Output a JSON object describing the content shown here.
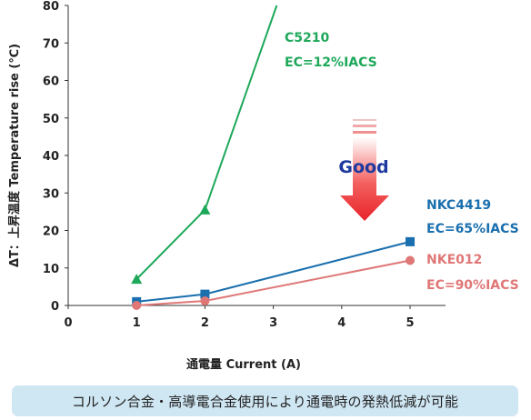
{
  "chart_data": {
    "type": "line",
    "xlabel": "通電量 Current (A)",
    "ylabel": "ΔT：上昇温度 Temperature rise (℃)",
    "xlim": [
      0,
      5.5
    ],
    "ylim": [
      0,
      80
    ],
    "xticks": [
      0,
      1,
      2,
      3,
      4,
      5
    ],
    "yticks": [
      0,
      10,
      20,
      30,
      40,
      50,
      60,
      70,
      80
    ],
    "grid": false,
    "series": [
      {
        "name": "C5210",
        "subname": "EC=12%IACS",
        "color": "#1ea85a",
        "marker": "triangle",
        "x": [
          1,
          2,
          3.05
        ],
        "y": [
          7,
          25.5,
          80
        ]
      },
      {
        "name": "NKC4419",
        "subname": "EC=65%IACS",
        "color": "#1a6fae",
        "marker": "square",
        "x": [
          1,
          2,
          5
        ],
        "y": [
          1,
          3,
          17
        ]
      },
      {
        "name": "NKE012",
        "subname": "EC=90%IACS",
        "color": "#e07777",
        "marker": "circle",
        "x": [
          1,
          2,
          5
        ],
        "y": [
          0,
          1.2,
          12
        ]
      }
    ],
    "annotation": {
      "text": "Good",
      "colors": [
        "#e8232a",
        "#1f3a9e"
      ]
    }
  },
  "caption": "コルソン合金・高導電合金使用により通電時の発熱低減が可能"
}
